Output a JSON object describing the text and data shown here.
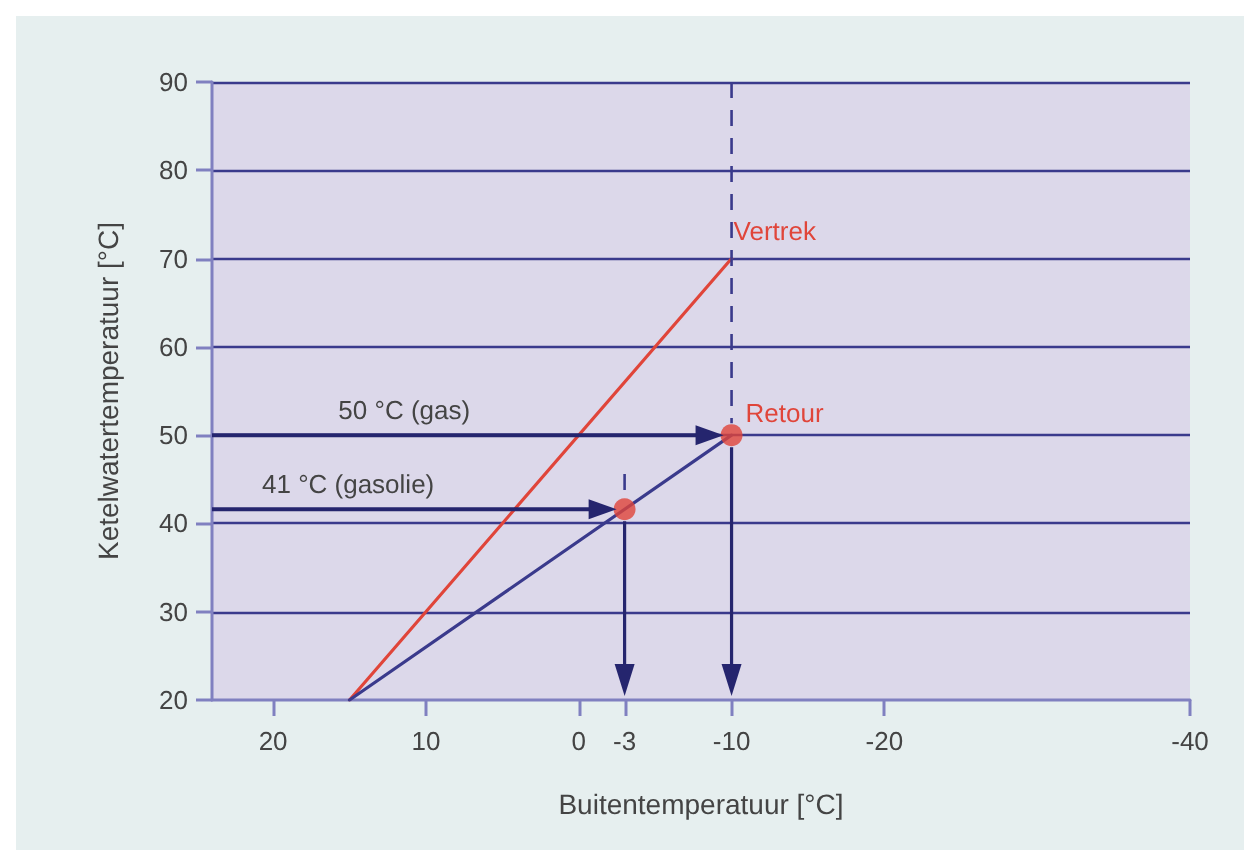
{
  "chart_data": {
    "type": "line",
    "xlabel": "Buitentemperatuur [°C]",
    "ylabel": "Ketelwatertemperatuur [°C]",
    "xlim": [
      24,
      -40
    ],
    "xticks": [
      20,
      10,
      0,
      -3,
      -10,
      -20,
      -40
    ],
    "ylim": [
      20,
      90
    ],
    "yticks": [
      20,
      30,
      40,
      50,
      60,
      70,
      80,
      90
    ],
    "series": [
      {
        "name": "Vertrek",
        "color": "#e0453a",
        "x": [
          15,
          -10
        ],
        "values": [
          20,
          70
        ]
      },
      {
        "name": "Retour",
        "color": "#3a3a8c",
        "x": [
          15,
          -10
        ],
        "values": [
          20,
          50
        ]
      },
      {
        "type": "scatter",
        "color": "#e0453a",
        "x": [
          -10,
          -3
        ],
        "values": [
          50,
          41.6
        ],
        "marker": "circle"
      }
    ],
    "annotations": [
      "50 °C (gas)",
      "41 °C (gasolie)"
    ],
    "grid": "y",
    "legend": false
  }
}
